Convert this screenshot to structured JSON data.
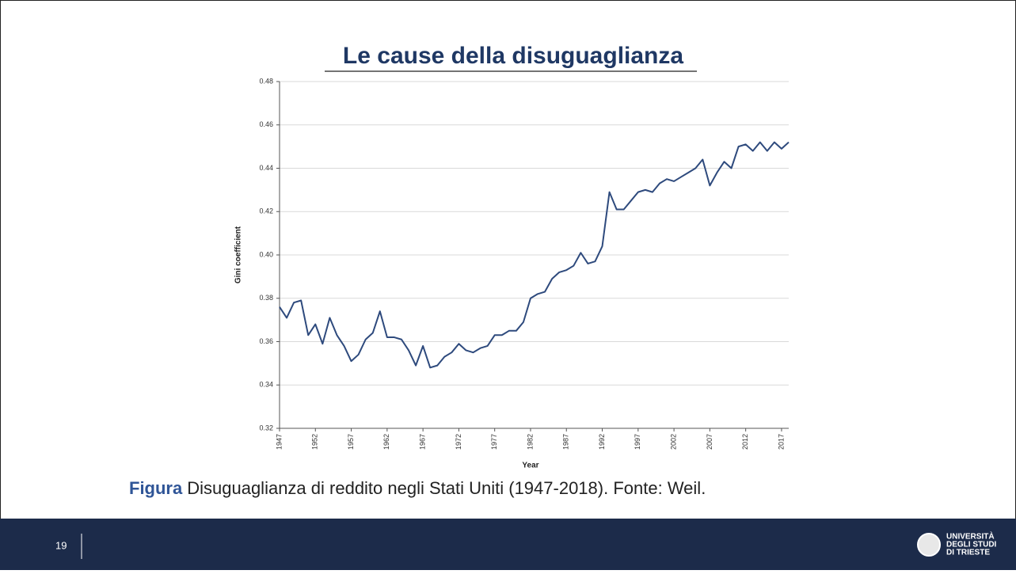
{
  "slide": {
    "title": "Le cause della disuguaglianza",
    "caption": {
      "label": "Figura",
      "text": "Disuguaglianza di reddito negli Stati Uniti (1947-2018). Fonte: Weil."
    },
    "page_number": "19",
    "logo": [
      "UNIVERSITÀ",
      "DEGLI STUDI",
      "DI TRIESTE"
    ]
  },
  "chart_data": {
    "type": "line",
    "xlabel": "Year",
    "ylabel": "Gini coefficient",
    "color": "#2e4a7d",
    "grid": true,
    "x": [
      1947,
      1948,
      1949,
      1950,
      1951,
      1952,
      1953,
      1954,
      1955,
      1956,
      1957,
      1958,
      1959,
      1960,
      1961,
      1962,
      1963,
      1964,
      1965,
      1966,
      1967,
      1968,
      1969,
      1970,
      1971,
      1972,
      1973,
      1974,
      1975,
      1976,
      1977,
      1978,
      1979,
      1980,
      1981,
      1982,
      1983,
      1984,
      1985,
      1986,
      1987,
      1988,
      1989,
      1990,
      1991,
      1992,
      1993,
      1994,
      1995,
      1996,
      1997,
      1998,
      1999,
      2000,
      2001,
      2002,
      2003,
      2004,
      2005,
      2006,
      2007,
      2008,
      2009,
      2010,
      2011,
      2012,
      2013,
      2014,
      2015,
      2016,
      2017,
      2018
    ],
    "values": [
      0.376,
      0.371,
      0.378,
      0.379,
      0.363,
      0.368,
      0.359,
      0.371,
      0.363,
      0.358,
      0.351,
      0.354,
      0.361,
      0.364,
      0.374,
      0.362,
      0.362,
      0.361,
      0.356,
      0.349,
      0.358,
      0.348,
      0.349,
      0.353,
      0.355,
      0.359,
      0.356,
      0.355,
      0.357,
      0.358,
      0.363,
      0.363,
      0.365,
      0.365,
      0.369,
      0.38,
      0.382,
      0.383,
      0.389,
      0.392,
      0.393,
      0.395,
      0.401,
      0.396,
      0.397,
      0.404,
      0.429,
      0.421,
      0.421,
      0.425,
      0.429,
      0.43,
      0.429,
      0.433,
      0.435,
      0.434,
      0.436,
      0.438,
      0.44,
      0.444,
      0.432,
      0.438,
      0.443,
      0.44,
      0.45,
      0.451,
      0.448,
      0.452,
      0.448,
      0.452,
      0.449,
      0.452
    ],
    "xlim": [
      1947,
      2018
    ],
    "xticks": [
      1947,
      1952,
      1957,
      1962,
      1967,
      1972,
      1977,
      1982,
      1987,
      1992,
      1997,
      2002,
      2007,
      2012,
      2017
    ],
    "ylim": [
      0.32,
      0.48
    ],
    "yticks": [
      0.32,
      0.34,
      0.36,
      0.38,
      {
        "value": 0.4,
        "label": "0.40"
      },
      0.42,
      0.44,
      0.46,
      0.48
    ]
  }
}
